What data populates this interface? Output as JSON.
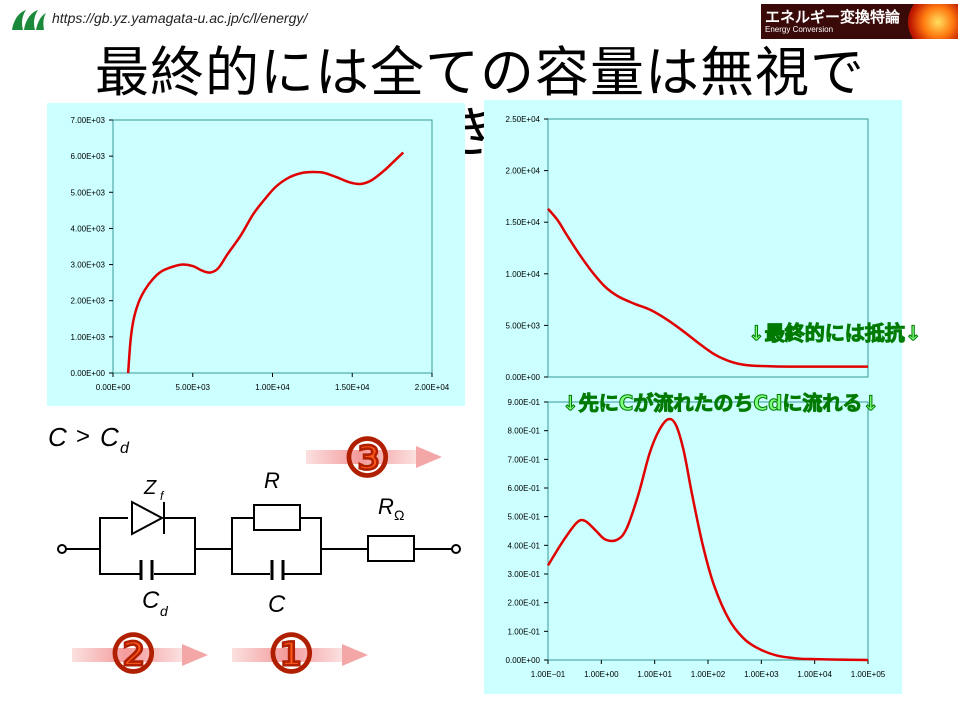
{
  "header": {
    "url": "https://gb.yz.yamagata-u.ac.jp/c/l/energy/",
    "banner_title": "エネルギー変換特論",
    "banner_subtitle": "Energy Conversion"
  },
  "slide": {
    "title": "最終的には全ての容量は無視で",
    "title_overflow": "き"
  },
  "colors": {
    "curve": "#e00000",
    "panel": "#ccffff",
    "arrow": "#f4a7a7",
    "step_number": "#ff5a1a"
  },
  "annotations": {
    "resistance_note": "↓最終的には抵抗↓",
    "flow_note": "↓先にCが流れたのちCdに流れる↓"
  },
  "circuit": {
    "condition_left": "C",
    "condition_op": ">",
    "condition_right": "C",
    "condition_sub": "d",
    "labels": {
      "zf": "Z",
      "zf_sub": "f",
      "r": "R",
      "romega": "R",
      "romega_sub": "Ω",
      "cd": "C",
      "cd_sub": "d",
      "c": "C"
    },
    "steps": [
      "③",
      "②",
      "①"
    ]
  },
  "chart_data": [
    {
      "type": "line",
      "yticks": [
        "7.00E+03",
        "6.00E+03",
        "5.00E+03",
        "4.00E+03",
        "3.00E+03",
        "2.00E+03",
        "1.00E+03",
        "0.00E+00"
      ],
      "xticks": [
        "0.00E+00",
        "5.00E+03",
        "1.00E+04",
        "1.50E+04",
        "2.00E+04"
      ],
      "xlim": [
        0,
        20000
      ],
      "ylim": [
        0,
        7000
      ],
      "x": [
        950,
        1100,
        1300,
        1600,
        2000,
        2500,
        3000,
        3600,
        4300,
        5000,
        5600,
        6100,
        6600,
        7200,
        8000,
        8800,
        9500,
        10200,
        11000,
        11800,
        12500,
        13200,
        14000,
        14800,
        15500,
        16200,
        17000,
        17600,
        18200
      ],
      "y": [
        0,
        900,
        1500,
        1950,
        2300,
        2600,
        2800,
        2920,
        3000,
        2960,
        2830,
        2780,
        2900,
        3300,
        3800,
        4400,
        4800,
        5150,
        5400,
        5530,
        5560,
        5540,
        5420,
        5280,
        5230,
        5330,
        5600,
        5850,
        6100
      ]
    },
    {
      "type": "line",
      "yticks": [
        "2.50E+04",
        "2.00E+04",
        "1.50E+04",
        "1.00E+04",
        "5.00E+03",
        "0.00E+00"
      ],
      "xlim": [
        0,
        1
      ],
      "ylim": [
        0,
        25000
      ],
      "x": [
        0,
        0.03,
        0.06,
        0.1,
        0.14,
        0.18,
        0.22,
        0.27,
        0.32,
        0.37,
        0.42,
        0.47,
        0.52,
        0.57,
        0.62,
        0.68,
        0.75,
        0.85,
        1.0
      ],
      "y": [
        16300,
        15200,
        13700,
        11800,
        10100,
        8700,
        7800,
        7100,
        6500,
        5600,
        4500,
        3300,
        2200,
        1500,
        1150,
        1050,
        1000,
        1000,
        1000
      ]
    },
    {
      "type": "line",
      "yticks": [
        "9.00E-01",
        "8.00E-01",
        "7.00E-01",
        "6.00E-01",
        "5.00E-01",
        "4.00E-01",
        "3.00E-01",
        "2.00E-01",
        "1.00E-01",
        "0.00E+00"
      ],
      "xticks": [
        "1.00E−01",
        "1.00E+00",
        "1.00E+01",
        "1.00E+02",
        "1.00E+03",
        "1.00E+04",
        "1.00E+05"
      ],
      "xlim": [
        0.1,
        100000
      ],
      "ylim": [
        0,
        0.9
      ],
      "xscale": "log",
      "x": [
        0.1,
        0.2,
        0.35,
        0.5,
        0.8,
        1.2,
        2.0,
        3.0,
        5.0,
        8.0,
        12,
        18,
        25,
        35,
        50,
        80,
        130,
        250,
        500,
        1000,
        2000,
        5000,
        10000,
        40000,
        100000
      ],
      "y": [
        0.33,
        0.42,
        0.48,
        0.485,
        0.45,
        0.42,
        0.42,
        0.46,
        0.58,
        0.72,
        0.8,
        0.84,
        0.82,
        0.73,
        0.58,
        0.4,
        0.26,
        0.14,
        0.07,
        0.035,
        0.015,
        0.005,
        0.003,
        0.001,
        0.0
      ]
    }
  ]
}
